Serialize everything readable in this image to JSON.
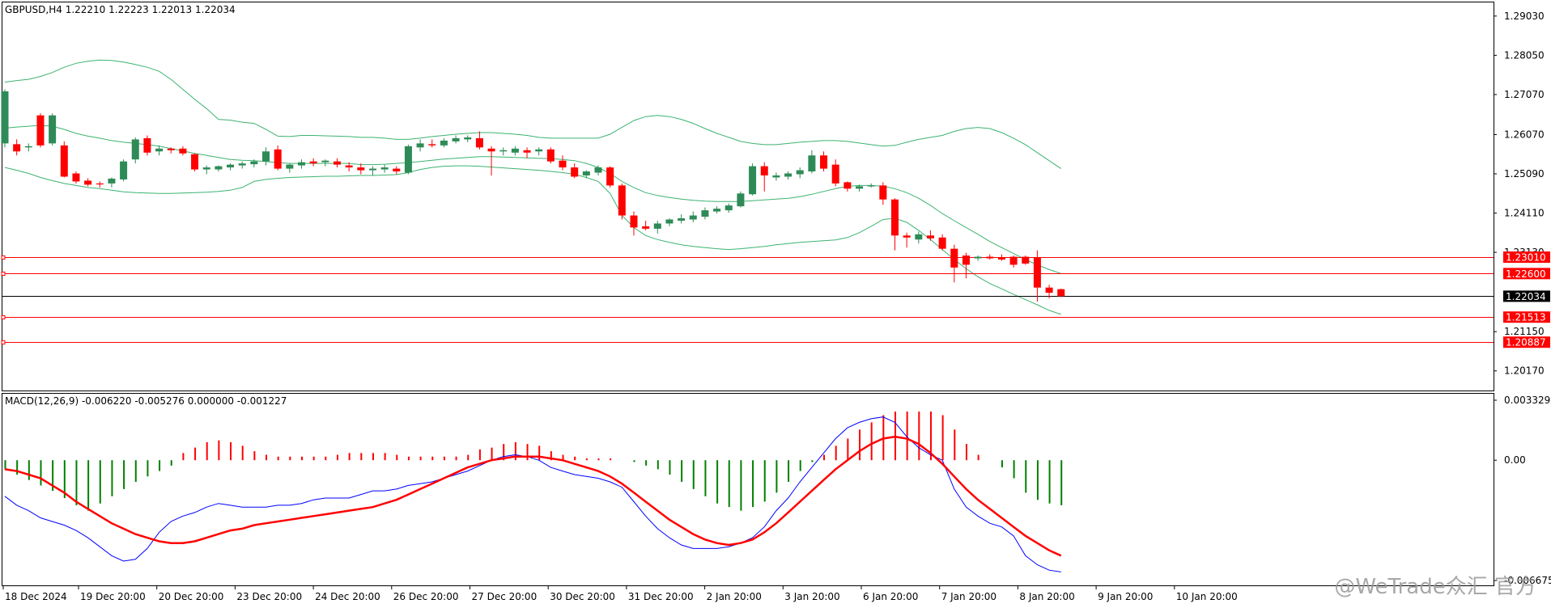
{
  "header": {
    "symbol_info": "GBPUSD,H4  1.22210 1.22223 1.22013 1.22034"
  },
  "macd": {
    "label": "MACD(12,26,9) -0.006220 -0.005276 0.000000 -0.001227",
    "axis_labels": [
      "0.003329",
      "0.00",
      "-0.006675"
    ],
    "range": [
      -0.006675,
      0.003329
    ],
    "colors": {
      "hist_up": "#ff0000",
      "hist_down": "#008000",
      "macd_line": "#0000ff",
      "signal_line": "#ff0000"
    }
  },
  "watermark": {
    "text": "@WeTrade众汇 官方"
  },
  "colors": {
    "bull": "#2e8b57",
    "bear": "#ff0000",
    "band": "#3cb371",
    "level": "#ff0000",
    "current": "#000000"
  },
  "chart_data": {
    "type": "candlestick",
    "symbol": "GBPUSD",
    "timeframe": "H4",
    "ylim": [
      1.1968,
      1.2937
    ],
    "y_ticks": [
      "1.29030",
      "1.28050",
      "1.27070",
      "1.26070",
      "1.25090",
      "1.24110",
      "1.23130",
      "1.21150",
      "1.20170"
    ],
    "x_labels": [
      "18 Dec 2024",
      "19 Dec 20:00",
      "20 Dec 20:00",
      "23 Dec 20:00",
      "24 Dec 20:00",
      "26 Dec 20:00",
      "27 Dec 20:00",
      "30 Dec 20:00",
      "31 Dec 20:00",
      "2 Jan 20:00",
      "3 Jan 20:00",
      "6 Jan 20:00",
      "7 Jan 20:00",
      "8 Jan 20:00",
      "9 Jan 20:00",
      "10 Jan 20:00"
    ],
    "levels": [
      {
        "price": 1.2301,
        "label": "1.23010"
      },
      {
        "price": 1.226,
        "label": "1.22600"
      },
      {
        "price": 1.21513,
        "label": "1.21513"
      },
      {
        "price": 1.20887,
        "label": "1.20887"
      }
    ],
    "current": {
      "price": 1.22034,
      "label": "1.22034"
    },
    "candles": [
      {
        "o": 1.2585,
        "h": 1.272,
        "l": 1.2575,
        "c": 1.2715
      },
      {
        "o": 1.2583,
        "h": 1.2595,
        "l": 1.2555,
        "c": 1.2565
      },
      {
        "o": 1.2575,
        "h": 1.2585,
        "l": 1.2565,
        "c": 1.2578
      },
      {
        "o": 1.2655,
        "h": 1.266,
        "l": 1.2575,
        "c": 1.258
      },
      {
        "o": 1.2585,
        "h": 1.266,
        "l": 1.258,
        "c": 1.2655
      },
      {
        "o": 1.258,
        "h": 1.259,
        "l": 1.25,
        "c": 1.2502
      },
      {
        "o": 1.251,
        "h": 1.2515,
        "l": 1.2485,
        "c": 1.249
      },
      {
        "o": 1.2492,
        "h": 1.2498,
        "l": 1.2478,
        "c": 1.2482
      },
      {
        "o": 1.2485,
        "h": 1.249,
        "l": 1.2475,
        "c": 1.2484
      },
      {
        "o": 1.2485,
        "h": 1.25,
        "l": 1.2475,
        "c": 1.2497
      },
      {
        "o": 1.2495,
        "h": 1.2545,
        "l": 1.249,
        "c": 1.254
      },
      {
        "o": 1.2545,
        "h": 1.26,
        "l": 1.2535,
        "c": 1.2595
      },
      {
        "o": 1.2598,
        "h": 1.2605,
        "l": 1.2555,
        "c": 1.2562
      },
      {
        "o": 1.2565,
        "h": 1.258,
        "l": 1.2555,
        "c": 1.2572
      },
      {
        "o": 1.2572,
        "h": 1.2575,
        "l": 1.256,
        "c": 1.2568
      },
      {
        "o": 1.2572,
        "h": 1.2578,
        "l": 1.2555,
        "c": 1.256
      },
      {
        "o": 1.2558,
        "h": 1.256,
        "l": 1.2515,
        "c": 1.252
      },
      {
        "o": 1.252,
        "h": 1.253,
        "l": 1.2508,
        "c": 1.2525
      },
      {
        "o": 1.252,
        "h": 1.253,
        "l": 1.2515,
        "c": 1.2528
      },
      {
        "o": 1.2525,
        "h": 1.2535,
        "l": 1.2518,
        "c": 1.2532
      },
      {
        "o": 1.253,
        "h": 1.254,
        "l": 1.2522,
        "c": 1.2535
      },
      {
        "o": 1.2533,
        "h": 1.2545,
        "l": 1.2525,
        "c": 1.254
      },
      {
        "o": 1.254,
        "h": 1.2575,
        "l": 1.253,
        "c": 1.2565
      },
      {
        "o": 1.257,
        "h": 1.258,
        "l": 1.2518,
        "c": 1.2522
      },
      {
        "o": 1.2522,
        "h": 1.2535,
        "l": 1.2512,
        "c": 1.2532
      },
      {
        "o": 1.253,
        "h": 1.2545,
        "l": 1.2522,
        "c": 1.2538
      },
      {
        "o": 1.254,
        "h": 1.2548,
        "l": 1.2528,
        "c": 1.2535
      },
      {
        "o": 1.2538,
        "h": 1.2545,
        "l": 1.2528,
        "c": 1.2542
      },
      {
        "o": 1.254,
        "h": 1.2548,
        "l": 1.2525,
        "c": 1.2532
      },
      {
        "o": 1.253,
        "h": 1.2538,
        "l": 1.2515,
        "c": 1.2525
      },
      {
        "o": 1.2525,
        "h": 1.2535,
        "l": 1.2508,
        "c": 1.2518
      },
      {
        "o": 1.2518,
        "h": 1.2528,
        "l": 1.2505,
        "c": 1.2522
      },
      {
        "o": 1.252,
        "h": 1.2532,
        "l": 1.2512,
        "c": 1.2525
      },
      {
        "o": 1.2522,
        "h": 1.2528,
        "l": 1.2508,
        "c": 1.2515
      },
      {
        "o": 1.2512,
        "h": 1.2582,
        "l": 1.2508,
        "c": 1.2578
      },
      {
        "o": 1.2575,
        "h": 1.2595,
        "l": 1.2565,
        "c": 1.2585
      },
      {
        "o": 1.2583,
        "h": 1.2595,
        "l": 1.2575,
        "c": 1.258
      },
      {
        "o": 1.258,
        "h": 1.2598,
        "l": 1.2575,
        "c": 1.2592
      },
      {
        "o": 1.259,
        "h": 1.2605,
        "l": 1.2585,
        "c": 1.2598
      },
      {
        "o": 1.2595,
        "h": 1.2605,
        "l": 1.2588,
        "c": 1.26
      },
      {
        "o": 1.2598,
        "h": 1.2615,
        "l": 1.257,
        "c": 1.2575
      },
      {
        "o": 1.2572,
        "h": 1.2578,
        "l": 1.2505,
        "c": 1.2565
      },
      {
        "o": 1.2565,
        "h": 1.2575,
        "l": 1.2555,
        "c": 1.2568
      },
      {
        "o": 1.2562,
        "h": 1.2578,
        "l": 1.2555,
        "c": 1.2572
      },
      {
        "o": 1.2568,
        "h": 1.2575,
        "l": 1.2548,
        "c": 1.2562
      },
      {
        "o": 1.2565,
        "h": 1.2575,
        "l": 1.2555,
        "c": 1.257
      },
      {
        "o": 1.257,
        "h": 1.2575,
        "l": 1.2535,
        "c": 1.254
      },
      {
        "o": 1.2542,
        "h": 1.2555,
        "l": 1.2518,
        "c": 1.2525
      },
      {
        "o": 1.2525,
        "h": 1.2535,
        "l": 1.2498,
        "c": 1.2502
      },
      {
        "o": 1.2505,
        "h": 1.2518,
        "l": 1.2498,
        "c": 1.2515
      },
      {
        "o": 1.2512,
        "h": 1.253,
        "l": 1.2505,
        "c": 1.2525
      },
      {
        "o": 1.2525,
        "h": 1.2528,
        "l": 1.2475,
        "c": 1.248
      },
      {
        "o": 1.248,
        "h": 1.2485,
        "l": 1.2395,
        "c": 1.2405
      },
      {
        "o": 1.2405,
        "h": 1.2415,
        "l": 1.2355,
        "c": 1.2375
      },
      {
        "o": 1.2378,
        "h": 1.2392,
        "l": 1.2368,
        "c": 1.2372
      },
      {
        "o": 1.2372,
        "h": 1.2392,
        "l": 1.236,
        "c": 1.2385
      },
      {
        "o": 1.2385,
        "h": 1.2398,
        "l": 1.2378,
        "c": 1.2395
      },
      {
        "o": 1.2392,
        "h": 1.2408,
        "l": 1.2385,
        "c": 1.2398
      },
      {
        "o": 1.2395,
        "h": 1.2415,
        "l": 1.2388,
        "c": 1.2405
      },
      {
        "o": 1.2402,
        "h": 1.2425,
        "l": 1.2395,
        "c": 1.2418
      },
      {
        "o": 1.2415,
        "h": 1.2428,
        "l": 1.241,
        "c": 1.2422
      },
      {
        "o": 1.2418,
        "h": 1.2435,
        "l": 1.2412,
        "c": 1.243
      },
      {
        "o": 1.2428,
        "h": 1.2465,
        "l": 1.2425,
        "c": 1.246
      },
      {
        "o": 1.2458,
        "h": 1.2535,
        "l": 1.2455,
        "c": 1.2528
      },
      {
        "o": 1.2528,
        "h": 1.2538,
        "l": 1.2465,
        "c": 1.2505
      },
      {
        "o": 1.25,
        "h": 1.2512,
        "l": 1.2492,
        "c": 1.2505
      },
      {
        "o": 1.2502,
        "h": 1.2515,
        "l": 1.2495,
        "c": 1.251
      },
      {
        "o": 1.2508,
        "h": 1.2525,
        "l": 1.2498,
        "c": 1.2518
      },
      {
        "o": 1.2515,
        "h": 1.2568,
        "l": 1.251,
        "c": 1.2555
      },
      {
        "o": 1.2555,
        "h": 1.2565,
        "l": 1.2515,
        "c": 1.2522
      },
      {
        "o": 1.2532,
        "h": 1.2545,
        "l": 1.2478,
        "c": 1.2485
      },
      {
        "o": 1.2488,
        "h": 1.249,
        "l": 1.2465,
        "c": 1.2472
      },
      {
        "o": 1.2472,
        "h": 1.2482,
        "l": 1.2465,
        "c": 1.2478
      },
      {
        "o": 1.2478,
        "h": 1.2485,
        "l": 1.2475,
        "c": 1.248
      },
      {
        "o": 1.248,
        "h": 1.2488,
        "l": 1.2432,
        "c": 1.2445
      },
      {
        "o": 1.2445,
        "h": 1.2448,
        "l": 1.2318,
        "c": 1.2355
      },
      {
        "o": 1.2355,
        "h": 1.2362,
        "l": 1.2325,
        "c": 1.235
      },
      {
        "o": 1.2345,
        "h": 1.2365,
        "l": 1.2335,
        "c": 1.2358
      },
      {
        "o": 1.2355,
        "h": 1.2368,
        "l": 1.2342,
        "c": 1.2348
      },
      {
        "o": 1.235,
        "h": 1.2358,
        "l": 1.2318,
        "c": 1.2322
      },
      {
        "o": 1.2322,
        "h": 1.2332,
        "l": 1.2238,
        "c": 1.2275
      },
      {
        "o": 1.2305,
        "h": 1.2312,
        "l": 1.2248,
        "c": 1.2282
      },
      {
        "o": 1.2298,
        "h": 1.2305,
        "l": 1.2292,
        "c": 1.2302
      },
      {
        "o": 1.2302,
        "h": 1.2308,
        "l": 1.2295,
        "c": 1.2298
      },
      {
        "o": 1.23,
        "h": 1.2308,
        "l": 1.2292,
        "c": 1.2295
      },
      {
        "o": 1.2302,
        "h": 1.2305,
        "l": 1.2275,
        "c": 1.2282
      },
      {
        "o": 1.2302,
        "h": 1.2305,
        "l": 1.2282,
        "c": 1.2285
      },
      {
        "o": 1.23,
        "h": 1.2318,
        "l": 1.219,
        "c": 1.2225
      },
      {
        "o": 1.2225,
        "h": 1.2232,
        "l": 1.2198,
        "c": 1.2212
      },
      {
        "o": 1.2221,
        "h": 1.22223,
        "l": 1.22013,
        "c": 1.22034
      }
    ],
    "bollinger": {
      "upper": [
        1.2738,
        1.2742,
        1.2745,
        1.2752,
        1.2762,
        1.2775,
        1.2785,
        1.279,
        1.2793,
        1.2792,
        1.2788,
        1.2782,
        1.2775,
        1.2765,
        1.2745,
        1.272,
        1.2695,
        1.2672,
        1.2645,
        1.2643,
        1.2638,
        1.2635,
        1.262,
        1.2603,
        1.2602,
        1.2605,
        1.2605,
        1.2604,
        1.2603,
        1.2602,
        1.26,
        1.26,
        1.2598,
        1.2595,
        1.2595,
        1.2598,
        1.2602,
        1.2605,
        1.2608,
        1.261,
        1.2612,
        1.2612,
        1.261,
        1.2608,
        1.2605,
        1.26,
        1.2598,
        1.2598,
        1.2598,
        1.2598,
        1.2598,
        1.2608,
        1.2625,
        1.2642,
        1.2652,
        1.2655,
        1.2652,
        1.2645,
        1.2635,
        1.2622,
        1.261,
        1.26,
        1.259,
        1.2585,
        1.2582,
        1.2582,
        1.2585,
        1.2588,
        1.259,
        1.2592,
        1.2592,
        1.259,
        1.2586,
        1.2582,
        1.2578,
        1.258,
        1.2588,
        1.2595,
        1.26,
        1.2605,
        1.2615,
        1.2622,
        1.2625,
        1.2622,
        1.2612,
        1.2598,
        1.2582,
        1.2562,
        1.2542,
        1.2522
      ],
      "middle": [
        1.2623,
        1.2626,
        1.2628,
        1.263,
        1.2628,
        1.262,
        1.261,
        1.2603,
        1.2598,
        1.2592,
        1.2588,
        1.2585,
        1.2582,
        1.2578,
        1.2572,
        1.2566,
        1.256,
        1.2555,
        1.255,
        1.2545,
        1.2543,
        1.2542,
        1.254,
        1.2537,
        1.2535,
        1.2535,
        1.2535,
        1.2535,
        1.2535,
        1.2535,
        1.2532,
        1.2532,
        1.2533,
        1.2535,
        1.2537,
        1.254,
        1.2543,
        1.2546,
        1.2548,
        1.255,
        1.2552,
        1.2552,
        1.2551,
        1.255,
        1.2549,
        1.2548,
        1.2547,
        1.2545,
        1.2542,
        1.2535,
        1.2525,
        1.251,
        1.249,
        1.2475,
        1.2462,
        1.2455,
        1.245,
        1.2446,
        1.2443,
        1.2441,
        1.244,
        1.244,
        1.244,
        1.2442,
        1.2444,
        1.2446,
        1.2448,
        1.2452,
        1.2458,
        1.2465,
        1.2472,
        1.2478,
        1.248,
        1.248,
        1.2478,
        1.2472,
        1.2462,
        1.2448,
        1.243,
        1.241,
        1.2392,
        1.2375,
        1.2358,
        1.234,
        1.2325,
        1.231,
        1.2295,
        1.2282,
        1.227,
        1.226
      ],
      "lower": [
        1.2525,
        1.2518,
        1.251,
        1.25,
        1.2492,
        1.2485,
        1.248,
        1.2475,
        1.2472,
        1.2468,
        1.2464,
        1.2462,
        1.2461,
        1.246,
        1.246,
        1.2461,
        1.2462,
        1.2463,
        1.2465,
        1.2468,
        1.2475,
        1.249,
        1.2495,
        1.2498,
        1.25,
        1.2501,
        1.2502,
        1.2503,
        1.2503,
        1.2504,
        1.2505,
        1.2505,
        1.2506,
        1.2507,
        1.2512,
        1.252,
        1.2525,
        1.2528,
        1.2529,
        1.2529,
        1.2528,
        1.2526,
        1.2524,
        1.2522,
        1.252,
        1.2518,
        1.2515,
        1.2512,
        1.2508,
        1.25,
        1.249,
        1.246,
        1.2405,
        1.2375,
        1.2355,
        1.2345,
        1.2338,
        1.2332,
        1.2328,
        1.2325,
        1.2322,
        1.232,
        1.2322,
        1.2325,
        1.2328,
        1.2332,
        1.2335,
        1.2338,
        1.234,
        1.2342,
        1.2344,
        1.235,
        1.2362,
        1.2378,
        1.2395,
        1.2398,
        1.2388,
        1.2368,
        1.2345,
        1.232,
        1.2295,
        1.2272,
        1.2252,
        1.2235,
        1.2222,
        1.2208,
        1.2195,
        1.2182,
        1.2168,
        1.2158
      ]
    },
    "macd_hist": [
      -0.0005,
      -0.0008,
      -0.0011,
      -0.0014,
      -0.0017,
      -0.0021,
      -0.0025,
      -0.0028,
      -0.0024,
      -0.002,
      -0.0016,
      -0.0012,
      -0.0009,
      -0.0006,
      -0.0003,
      0.0004,
      0.0007,
      0.001,
      0.0011,
      0.001,
      0.0008,
      0.0005,
      0.0003,
      0.0002,
      0.0002,
      0.0002,
      0.0002,
      0.0002,
      0.0003,
      0.0004,
      0.0004,
      0.0004,
      0.0004,
      0.0003,
      0.0002,
      0.0002,
      0.0002,
      0.0002,
      0.0002,
      0.0003,
      0.0006,
      0.0007,
      0.0009,
      0.001,
      0.0009,
      0.0008,
      0.0005,
      0.0003,
      0.0002,
      0.0001,
      0.0001,
      0.0001,
      0.0,
      -0.0001,
      -0.0003,
      -0.0005,
      -0.0008,
      -0.0012,
      -0.0016,
      -0.002,
      -0.0024,
      -0.0026,
      -0.0028,
      -0.0026,
      -0.0023,
      -0.0018,
      -0.0012,
      -0.0006,
      -0.0001,
      0.0003,
      0.0008,
      0.0012,
      0.0017,
      0.0021,
      0.0025,
      0.0027,
      0.0027,
      0.0027,
      0.0027,
      0.0025,
      0.0017,
      0.0009,
      0.0003,
      0.0,
      -0.0004,
      -0.001,
      -0.0018,
      -0.0022,
      -0.0024,
      -0.0025
    ],
    "macd_line": [
      -0.002,
      -0.0025,
      -0.0028,
      -0.0032,
      -0.0034,
      -0.0036,
      -0.0039,
      -0.0043,
      -0.0048,
      -0.0053,
      -0.0056,
      -0.0055,
      -0.0049,
      -0.004,
      -0.0034,
      -0.0031,
      -0.0029,
      -0.0026,
      -0.0024,
      -0.0025,
      -0.0026,
      -0.0026,
      -0.0026,
      -0.0025,
      -0.0025,
      -0.0024,
      -0.0022,
      -0.0021,
      -0.0021,
      -0.0021,
      -0.0019,
      -0.0017,
      -0.0017,
      -0.0016,
      -0.0014,
      -0.0013,
      -0.0012,
      -0.001,
      -0.0008,
      -0.0006,
      -0.0003,
      0.0,
      0.0002,
      0.0003,
      0.0002,
      0.0,
      -0.0004,
      -0.0006,
      -0.0008,
      -0.0009,
      -0.001,
      -0.0012,
      -0.0015,
      -0.0023,
      -0.0031,
      -0.0038,
      -0.0043,
      -0.0047,
      -0.0049,
      -0.0049,
      -0.0049,
      -0.0048,
      -0.0046,
      -0.0043,
      -0.0037,
      -0.0028,
      -0.0021,
      -0.0012,
      -0.0004,
      0.0004,
      0.0012,
      0.0018,
      0.0021,
      0.0023,
      0.0024,
      0.0021,
      0.0013,
      0.0007,
      0.0003,
      0.0,
      -0.0016,
      -0.0026,
      -0.0031,
      -0.0035,
      -0.0037,
      -0.0042,
      -0.0053,
      -0.0058,
      -0.0061,
      -0.0062
    ],
    "signal_line": [
      -0.0005,
      -0.0006,
      -0.0008,
      -0.001,
      -0.0014,
      -0.0018,
      -0.0023,
      -0.0027,
      -0.0031,
      -0.0035,
      -0.0038,
      -0.0041,
      -0.0043,
      -0.0045,
      -0.0046,
      -0.0046,
      -0.0045,
      -0.0043,
      -0.0041,
      -0.0039,
      -0.0038,
      -0.0036,
      -0.0035,
      -0.0034,
      -0.0033,
      -0.0032,
      -0.0031,
      -0.003,
      -0.0029,
      -0.0028,
      -0.0027,
      -0.0026,
      -0.0024,
      -0.0022,
      -0.0019,
      -0.0016,
      -0.0013,
      -0.001,
      -0.0007,
      -0.0004,
      -0.0002,
      0.0,
      0.0001,
      0.0002,
      0.0002,
      0.0002,
      0.0001,
      0.0,
      -0.0002,
      -0.0004,
      -0.0006,
      -0.0009,
      -0.0013,
      -0.0018,
      -0.0023,
      -0.0028,
      -0.0033,
      -0.0037,
      -0.0041,
      -0.0044,
      -0.0046,
      -0.0047,
      -0.0046,
      -0.0044,
      -0.004,
      -0.0035,
      -0.0029,
      -0.0023,
      -0.0017,
      -0.0011,
      -0.0005,
      0.0,
      0.0005,
      0.0009,
      0.0012,
      0.0013,
      0.0012,
      0.0009,
      0.0004,
      -0.0002,
      -0.0009,
      -0.0016,
      -0.0022,
      -0.0027,
      -0.0032,
      -0.0037,
      -0.0042,
      -0.0046,
      -0.005,
      -0.0053
    ]
  }
}
